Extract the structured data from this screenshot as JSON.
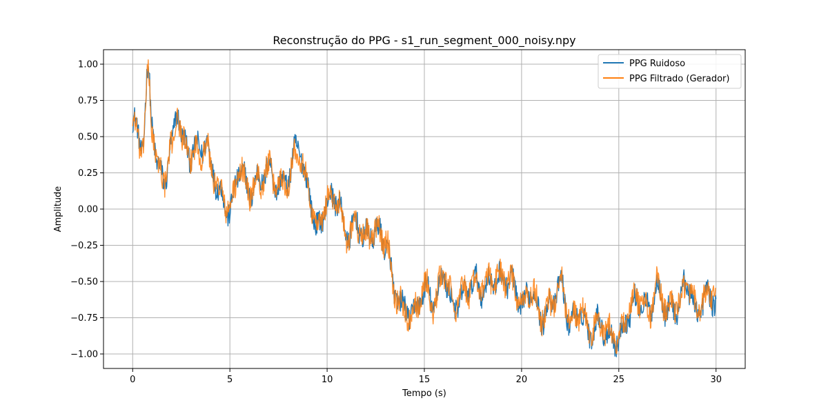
{
  "chart_data": {
    "type": "line",
    "title": "Reconstrução do PPG - s1_run_segment_000_noisy.npy",
    "xlabel": "Tempo (s)",
    "ylabel": "Amplitude",
    "xlim": [
      -1.5,
      31.5
    ],
    "ylim": [
      -1.1,
      1.1
    ],
    "xticks": [
      0,
      5,
      10,
      15,
      20,
      25,
      30
    ],
    "xtick_labels": [
      "0",
      "5",
      "10",
      "15",
      "20",
      "25",
      "30"
    ],
    "yticks": [
      -1.0,
      -0.75,
      -0.5,
      -0.25,
      0.0,
      0.25,
      0.5,
      0.75,
      1.0
    ],
    "ytick_labels": [
      "−1.00",
      "−0.75",
      "−0.50",
      "−0.25",
      "0.00",
      "0.25",
      "0.50",
      "0.75",
      "1.00"
    ],
    "grid": true,
    "legend_position": "top-right",
    "x_sample_step": 0.1,
    "series": [
      {
        "name": "PPG Ruidoso",
        "color": "#1f77b4",
        "x": [
          0,
          0.5,
          0.8,
          1.0,
          1.3,
          1.6,
          2.0,
          2.3,
          2.6,
          3.0,
          3.4,
          3.8,
          4.0,
          4.5,
          5.0,
          5.5,
          6.0,
          6.5,
          7.0,
          7.5,
          8.0,
          8.5,
          9.0,
          9.5,
          10.0,
          10.5,
          11.0,
          11.5,
          12.0,
          12.5,
          13.0,
          13.5,
          14.0,
          14.5,
          15.0,
          15.5,
          16.0,
          16.5,
          17.0,
          17.5,
          18.0,
          18.5,
          19.0,
          19.5,
          20.0,
          20.5,
          21.0,
          21.5,
          22.0,
          22.5,
          23.0,
          23.5,
          24.0,
          24.5,
          25.0,
          25.5,
          26.0,
          26.5,
          27.0,
          27.5,
          28.0,
          28.5,
          29.0,
          29.5,
          30.0
        ],
        "y": [
          0.6,
          0.45,
          0.93,
          0.6,
          0.28,
          0.2,
          0.42,
          0.7,
          0.45,
          0.38,
          0.42,
          0.45,
          0.32,
          0.1,
          -0.02,
          0.28,
          0.12,
          0.2,
          0.28,
          0.15,
          0.22,
          0.45,
          0.15,
          -0.15,
          0.05,
          0.08,
          -0.18,
          -0.1,
          -0.2,
          -0.15,
          -0.22,
          -0.58,
          -0.7,
          -0.72,
          -0.55,
          -0.65,
          -0.45,
          -0.68,
          -0.6,
          -0.5,
          -0.55,
          -0.5,
          -0.48,
          -0.5,
          -0.68,
          -0.55,
          -0.75,
          -0.65,
          -0.52,
          -0.78,
          -0.72,
          -0.85,
          -0.78,
          -0.88,
          -0.9,
          -0.72,
          -0.62,
          -0.7,
          -0.55,
          -0.7,
          -0.68,
          -0.5,
          -0.72,
          -0.6,
          -0.62
        ],
        "noise": 0.035
      },
      {
        "name": "PPG Filtrado (Gerador)",
        "color": "#ff7f0e",
        "x": [
          0,
          0.5,
          0.8,
          1.0,
          1.3,
          1.6,
          2.0,
          2.3,
          2.6,
          3.0,
          3.4,
          3.8,
          4.0,
          4.5,
          5.0,
          5.5,
          6.0,
          6.5,
          7.0,
          7.5,
          8.0,
          8.5,
          9.0,
          9.5,
          10.0,
          10.5,
          11.0,
          11.5,
          12.0,
          12.5,
          13.0,
          13.5,
          14.0,
          14.5,
          15.0,
          15.5,
          16.0,
          16.5,
          17.0,
          17.5,
          18.0,
          18.5,
          19.0,
          19.5,
          20.0,
          20.5,
          21.0,
          21.5,
          22.0,
          22.5,
          23.0,
          23.5,
          24.0,
          24.5,
          25.0,
          25.5,
          26.0,
          26.5,
          27.0,
          27.5,
          28.0,
          28.5,
          29.0,
          29.5,
          30.0
        ],
        "y": [
          0.58,
          0.43,
          0.9,
          0.58,
          0.27,
          0.22,
          0.4,
          0.68,
          0.43,
          0.37,
          0.4,
          0.43,
          0.3,
          0.11,
          0.0,
          0.27,
          0.13,
          0.19,
          0.27,
          0.16,
          0.21,
          0.43,
          0.16,
          -0.14,
          0.06,
          0.07,
          -0.17,
          -0.11,
          -0.19,
          -0.16,
          -0.2,
          -0.57,
          -0.72,
          -0.7,
          -0.53,
          -0.67,
          -0.43,
          -0.66,
          -0.58,
          -0.52,
          -0.53,
          -0.48,
          -0.46,
          -0.52,
          -0.66,
          -0.57,
          -0.73,
          -0.67,
          -0.5,
          -0.76,
          -0.7,
          -0.83,
          -0.8,
          -0.86,
          -0.88,
          -0.7,
          -0.6,
          -0.72,
          -0.53,
          -0.68,
          -0.66,
          -0.52,
          -0.7,
          -0.62,
          -0.55
        ],
        "noise": 0.04
      }
    ]
  }
}
